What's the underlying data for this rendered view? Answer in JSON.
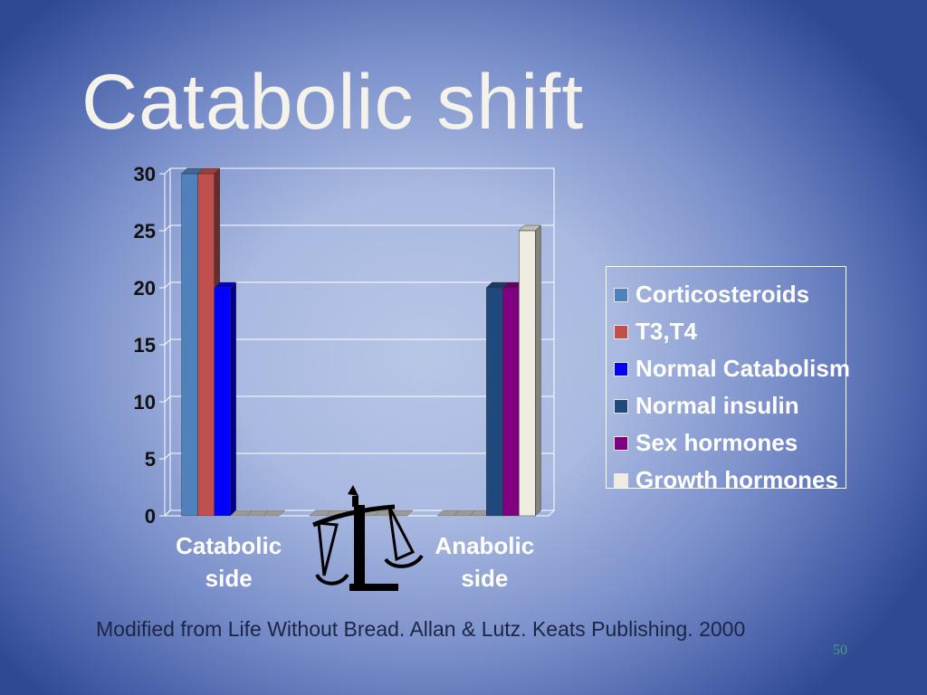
{
  "slide": {
    "title": "Catabolic shift",
    "source": "Modified from Life Without Bread. Allan & Lutz. Keats Publishing. 2000",
    "page_number": "50",
    "decoration_icon": "scales-icon"
  },
  "chart_data": {
    "type": "bar",
    "style": "3d-clustered",
    "categories": [
      "Catabolic\nside",
      "",
      "Anabolic\nside"
    ],
    "series": [
      {
        "name": "Corticosteroids",
        "color": "#4f81bd",
        "values": [
          30,
          0,
          0
        ]
      },
      {
        "name": "T3,T4",
        "color": "#c0504d",
        "values": [
          30,
          0,
          0
        ]
      },
      {
        "name": "Normal Catabolism",
        "color": "#0000ff",
        "values": [
          20,
          0,
          0
        ]
      },
      {
        "name": "Normal insulin",
        "color": "#1f497d",
        "values": [
          0,
          0,
          20
        ]
      },
      {
        "name": "Sex hormones",
        "color": "#800080",
        "values": [
          0,
          0,
          20
        ]
      },
      {
        "name": "Growth hormones",
        "color": "#eeece1",
        "values": [
          0,
          0,
          25
        ]
      }
    ],
    "yticks": [
      "0",
      "5",
      "10",
      "15",
      "20",
      "25",
      "30"
    ],
    "ylim": [
      0,
      30
    ],
    "grid": true,
    "legend_position": "right",
    "title": "",
    "xlabel": "",
    "ylabel": ""
  }
}
